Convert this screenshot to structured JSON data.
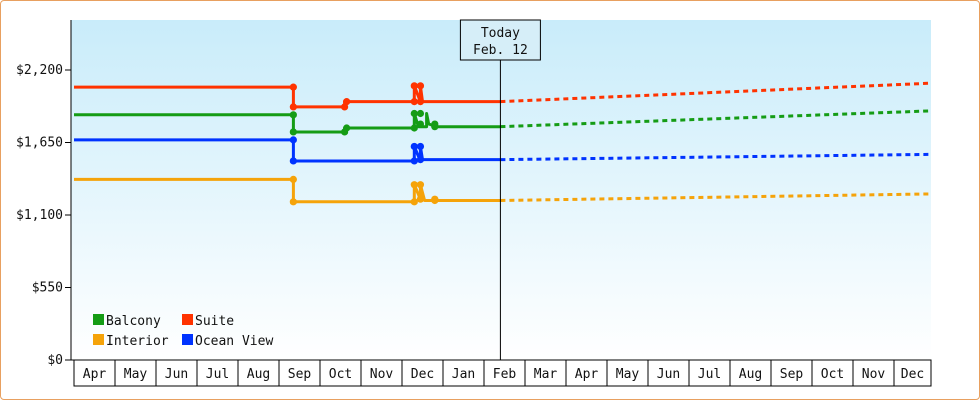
{
  "chart_data": {
    "type": "line",
    "title": "",
    "xlabel": "",
    "ylabel": "",
    "y_axis": {
      "range": [
        0,
        2600
      ],
      "ticks": [
        0,
        550,
        1100,
        1650,
        2200
      ],
      "tick_labels": [
        "$0",
        "$550",
        "$1,100",
        "$1,650",
        "$2,200"
      ]
    },
    "x_axis": {
      "month_labels": [
        "Apr",
        "May",
        "Jun",
        "Jul",
        "Aug",
        "Sep",
        "Oct",
        "Nov",
        "Dec",
        "Jan",
        "Feb",
        "Mar",
        "Apr",
        "May",
        "Jun",
        "Jul",
        "Aug",
        "Sep",
        "Oct",
        "Nov",
        "Dec"
      ]
    },
    "today": {
      "line1": "Today",
      "line2": "Feb. 12",
      "x": 10.4
    },
    "grid": false,
    "legend": {
      "placement": "bottom-left",
      "columns": 2
    },
    "series": [
      {
        "name": "Balcony",
        "color": "#159c15",
        "history": [
          [
            0,
            1860
          ],
          [
            5.35,
            1860
          ],
          [
            5.35,
            1730
          ],
          [
            6.6,
            1730
          ],
          [
            6.6,
            1760
          ],
          [
            8.3,
            1760
          ],
          [
            8.3,
            1870
          ],
          [
            8.4,
            1770
          ],
          [
            8.6,
            1770
          ],
          [
            8.6,
            1870
          ],
          [
            8.65,
            1790
          ],
          [
            8.85,
            1770
          ],
          [
            9.15,
            1770
          ],
          [
            10.4,
            1770
          ]
        ],
        "markers": [
          [
            5.35,
            1860
          ],
          [
            5.35,
            1730
          ],
          [
            6.6,
            1730
          ],
          [
            6.65,
            1760
          ],
          [
            8.3,
            1760
          ],
          [
            8.3,
            1870
          ],
          [
            8.45,
            1870
          ],
          [
            8.45,
            1790
          ],
          [
            8.8,
            1790
          ],
          [
            8.8,
            1770
          ]
        ],
        "forecast": [
          [
            10.4,
            1770
          ],
          [
            21,
            1890
          ]
        ]
      },
      {
        "name": "Suite",
        "color": "#ff3300",
        "history": [
          [
            0,
            2070
          ],
          [
            5.35,
            2070
          ],
          [
            5.35,
            1920
          ],
          [
            6.6,
            1920
          ],
          [
            6.6,
            1960
          ],
          [
            8.3,
            1960
          ],
          [
            8.3,
            2080
          ],
          [
            8.45,
            1960
          ],
          [
            8.45,
            2080
          ],
          [
            8.5,
            1960
          ],
          [
            10.4,
            1960
          ]
        ],
        "markers": [
          [
            5.35,
            2070
          ],
          [
            5.35,
            1920
          ],
          [
            6.6,
            1920
          ],
          [
            6.65,
            1960
          ],
          [
            8.3,
            1960
          ],
          [
            8.3,
            2080
          ],
          [
            8.45,
            2080
          ],
          [
            8.45,
            1960
          ]
        ],
        "forecast": [
          [
            10.4,
            1960
          ],
          [
            21,
            2100
          ]
        ]
      },
      {
        "name": "Interior",
        "color": "#f5a30a",
        "history": [
          [
            0,
            1370
          ],
          [
            5.35,
            1370
          ],
          [
            5.35,
            1200
          ],
          [
            8.3,
            1200
          ],
          [
            8.3,
            1330
          ],
          [
            8.45,
            1220
          ],
          [
            8.45,
            1330
          ],
          [
            8.55,
            1210
          ],
          [
            9.15,
            1210
          ],
          [
            10.4,
            1210
          ]
        ],
        "markers": [
          [
            5.35,
            1370
          ],
          [
            5.35,
            1200
          ],
          [
            8.3,
            1200
          ],
          [
            8.3,
            1330
          ],
          [
            8.45,
            1330
          ],
          [
            8.45,
            1220
          ],
          [
            8.8,
            1220
          ],
          [
            8.8,
            1210
          ]
        ],
        "forecast": [
          [
            10.4,
            1210
          ],
          [
            21,
            1260
          ]
        ]
      },
      {
        "name": "Ocean View",
        "color": "#0033ff",
        "history": [
          [
            0,
            1670
          ],
          [
            5.35,
            1670
          ],
          [
            5.35,
            1510
          ],
          [
            8.3,
            1510
          ],
          [
            8.3,
            1620
          ],
          [
            8.45,
            1510
          ],
          [
            8.45,
            1620
          ],
          [
            8.5,
            1520
          ],
          [
            10.4,
            1520
          ]
        ],
        "markers": [
          [
            5.35,
            1670
          ],
          [
            5.35,
            1510
          ],
          [
            8.3,
            1510
          ],
          [
            8.3,
            1620
          ],
          [
            8.45,
            1620
          ],
          [
            8.45,
            1520
          ]
        ],
        "forecast": [
          [
            10.4,
            1520
          ],
          [
            21,
            1560
          ]
        ]
      }
    ]
  }
}
